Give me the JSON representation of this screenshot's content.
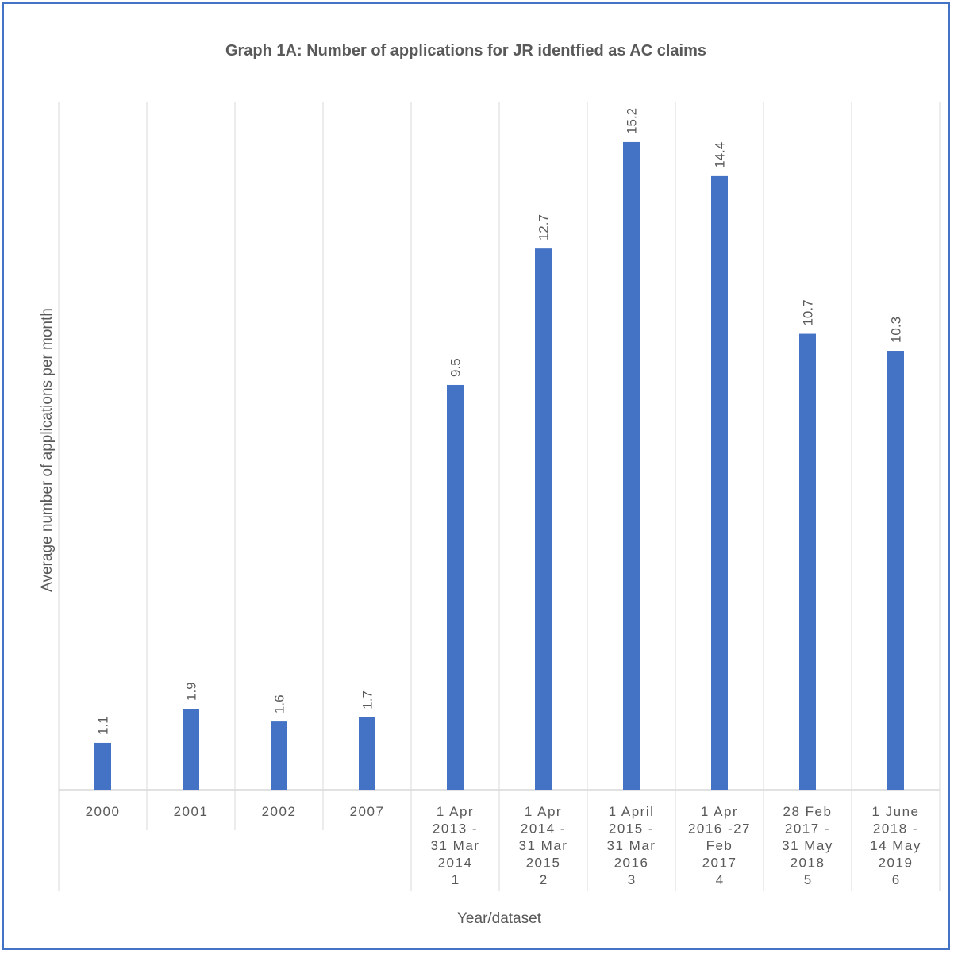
{
  "chart_data": {
    "type": "bar",
    "title": "Graph 1A: Number of applications for JR identfied as AC claims",
    "xlabel": "Year/dataset",
    "ylabel": "Average number of applications per month",
    "categories": [
      [
        "2000"
      ],
      [
        "2001"
      ],
      [
        "2002"
      ],
      [
        "2007"
      ],
      [
        "1 Apr",
        "2013 -",
        "31 Mar",
        "2014"
      ],
      [
        "1 Apr",
        "2014 -",
        "31 Mar",
        "2015"
      ],
      [
        "1 April",
        "2015 -",
        "31 Mar",
        "2016"
      ],
      [
        "1 Apr",
        "2016 -27",
        "Feb",
        "2017"
      ],
      [
        "28 Feb",
        "2017 -",
        "31 May",
        "2018"
      ],
      [
        "1 June",
        "2018 -",
        "14 May",
        "2019"
      ]
    ],
    "groups": [
      "",
      "",
      "",
      "",
      "1",
      "2",
      "3",
      "4",
      "5",
      "6"
    ],
    "values": [
      1.1,
      1.9,
      1.6,
      1.7,
      9.5,
      12.7,
      15.2,
      14.4,
      10.7,
      10.3
    ],
    "labels": [
      "1.1",
      "1.9",
      "1.6",
      "1.7",
      "9.5",
      "12.7",
      "15.2",
      "14.4",
      "10.7",
      "10.3"
    ],
    "ylim": [
      0,
      16
    ],
    "grid": "vertical category separators",
    "legend": "none",
    "colors": {
      "bar": "#4472C4",
      "grid": "#D9D9D9",
      "text": "#595959",
      "border": "#4472C4"
    }
  }
}
